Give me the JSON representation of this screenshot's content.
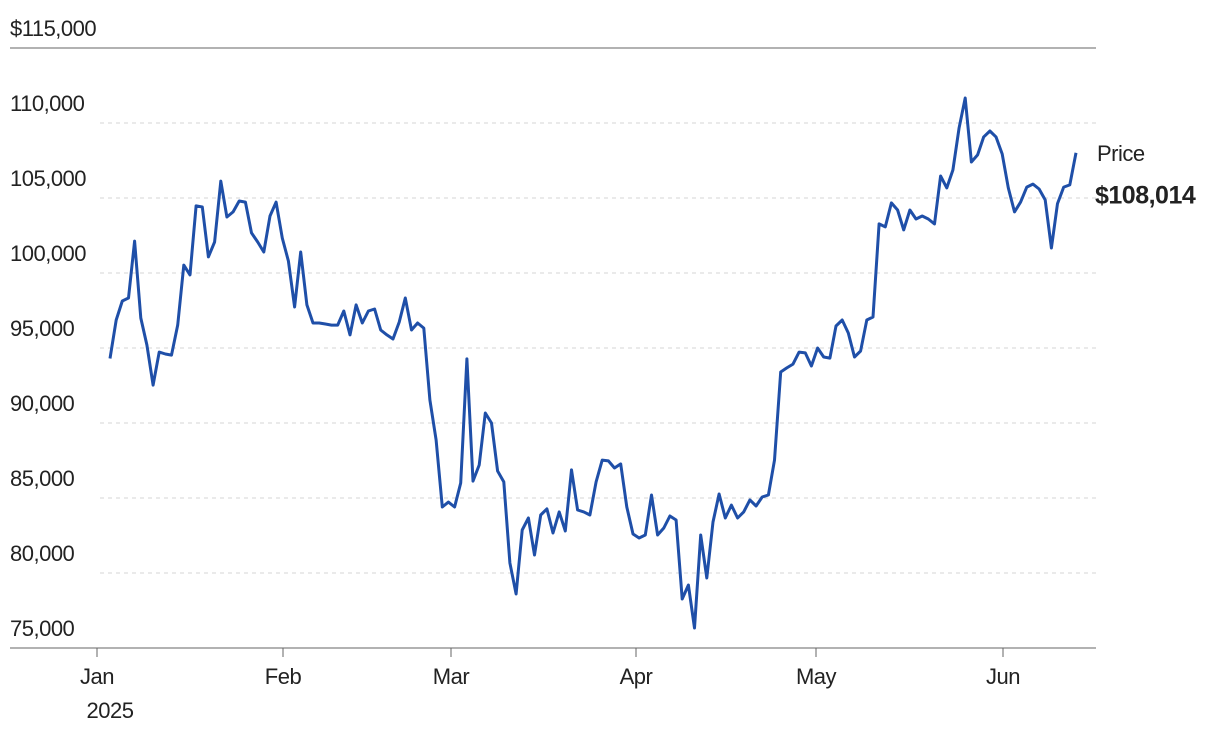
{
  "chart_data": {
    "type": "line",
    "xtick_labels": [
      "Jan",
      "Feb",
      "Mar",
      "Apr",
      "May",
      "Jun"
    ],
    "x_year": "2025",
    "series": [
      {
        "name": "Price",
        "color": "#1f4fa8",
        "end_label": "$108,014",
        "values": [
          94300,
          96870,
          98130,
          98330,
          102130,
          97000,
          95200,
          92530,
          94730,
          94600,
          94530,
          96530,
          100530,
          99870,
          104470,
          104400,
          101070,
          102070,
          106130,
          103730,
          104070,
          104800,
          104730,
          102670,
          102070,
          101400,
          103800,
          104730,
          102330,
          100800,
          97730,
          101400,
          97870,
          96670,
          96670,
          96600,
          96530,
          96530,
          97470,
          95870,
          97870,
          96670,
          97470,
          97600,
          96200,
          95870,
          95600,
          96730,
          98330,
          96200,
          96670,
          96330,
          91530,
          88870,
          84400,
          84730,
          84400,
          86000,
          94270,
          86130,
          87200,
          90670,
          90000,
          86800,
          86070,
          80670,
          78600,
          82870,
          83670,
          81200,
          83870,
          84270,
          82670,
          84070,
          82800,
          86870,
          84200,
          84070,
          83870,
          86070,
          87530,
          87470,
          87000,
          87270,
          84400,
          82600,
          82330,
          82530,
          85200,
          82530,
          83000,
          83800,
          83530,
          78270,
          79200,
          76330,
          82530,
          79670,
          83400,
          85270,
          83670,
          84530,
          83670,
          84070,
          84870,
          84470,
          85070,
          85200,
          87530,
          93400,
          93670,
          93930,
          94730,
          94670,
          93800,
          95000,
          94400,
          94330,
          96470,
          96870,
          96000,
          94400,
          94800,
          96870,
          97070,
          103270,
          103070,
          104670,
          104200,
          102870,
          104200,
          103600,
          103800,
          103600,
          103270,
          106470,
          105670,
          106870,
          109670,
          111670,
          107400,
          107870,
          109070,
          109470,
          109070,
          107930,
          105670,
          104070,
          104730,
          105730,
          105930,
          105600,
          104870,
          101670,
          104630,
          105730,
          105870,
          108014
        ]
      }
    ],
    "ylim": [
      75000,
      115000
    ],
    "yticks": [
      {
        "value": 75000,
        "label": "75,000"
      },
      {
        "value": 80000,
        "label": "80,000"
      },
      {
        "value": 85000,
        "label": "85,000"
      },
      {
        "value": 90000,
        "label": "90,000"
      },
      {
        "value": 95000,
        "label": "95,000"
      },
      {
        "value": 100000,
        "label": "100,000"
      },
      {
        "value": 105000,
        "label": "105,000"
      },
      {
        "value": 110000,
        "label": "110,000"
      },
      {
        "value": 115000,
        "label": "$115,000"
      }
    ],
    "grid": true
  }
}
